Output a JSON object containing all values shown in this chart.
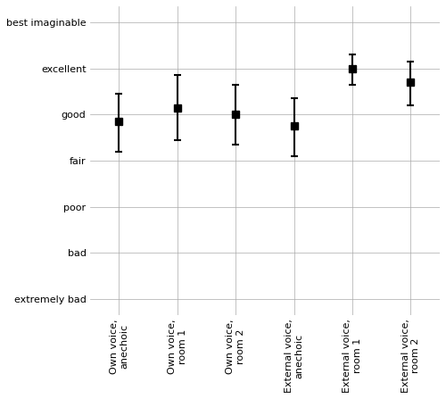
{
  "categories": [
    "Own voice,\nanechoic",
    "Own voice,\nroom 1",
    "Own voice,\nroom 2",
    "External voice,\nanechoic",
    "External voice,\nroom 1",
    "External voice,\nroom 2"
  ],
  "means": [
    4.85,
    5.15,
    5.0,
    4.75,
    6.0,
    5.7
  ],
  "ci_lower": [
    4.2,
    4.45,
    4.35,
    4.1,
    5.65,
    5.2
  ],
  "ci_upper": [
    5.45,
    5.85,
    5.65,
    5.35,
    6.3,
    6.15
  ],
  "ytick_positions": [
    1,
    2,
    3,
    4,
    5,
    6,
    7
  ],
  "ytick_labels": [
    "extremely bad",
    "bad",
    "poor",
    "fair",
    "good",
    "excellent",
    "best imaginable"
  ],
  "marker_color": "#000000",
  "line_color": "#000000",
  "background_color": "#ffffff",
  "grid_color": "#aaaaaa",
  "marker_size": 6,
  "capsize": 3,
  "linewidth": 1.5
}
